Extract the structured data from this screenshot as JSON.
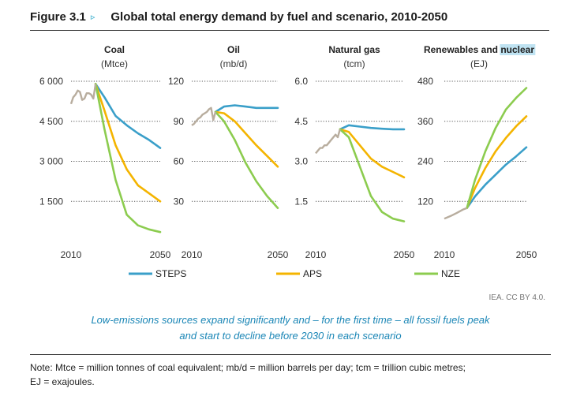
{
  "figure": {
    "number": "Figure 3.1",
    "arrow": "▹",
    "title": "Global total energy demand by fuel and scenario, 2010-2050"
  },
  "credit": "IEA. CC BY 4.0.",
  "caption": {
    "line1": "Low-emissions sources expand significantly and – for the first time – all fossil fuels peak",
    "line2": "and start to decline before 2030 in each scenario"
  },
  "note": {
    "line1": "Note: Mtce = million tonnes of coal equivalent; mb/d = million barrels per day; tcm = trillion cubic metres;",
    "line2": "EJ = exajoules."
  },
  "colors": {
    "historical": "#b8ad9e",
    "STEPS": "#3a9fc9",
    "APS": "#f4b400",
    "NZE": "#8ccc4f",
    "grid": "#555555",
    "highlight": "#bfe3f2"
  },
  "chart_data": [
    {
      "type": "line",
      "title": "Coal",
      "unit": "(Mtce)",
      "yticks": [
        "6 000",
        "4 500",
        "3 000",
        "1 500"
      ],
      "ytick_values": [
        6000,
        4500,
        3000,
        1500
      ],
      "ylim": [
        0,
        6000
      ],
      "xticks": [
        "2010",
        "2050"
      ],
      "xlim": [
        2010,
        2050
      ],
      "grid": true,
      "historical": {
        "x": [
          2010,
          2011,
          2012,
          2013,
          2014,
          2015,
          2016,
          2017,
          2018,
          2019,
          2020,
          2021
        ],
        "y": [
          5150,
          5400,
          5500,
          5650,
          5600,
          5300,
          5350,
          5550,
          5550,
          5500,
          5350,
          5900
        ]
      },
      "series": [
        {
          "name": "STEPS",
          "x": [
            2021,
            2025,
            2030,
            2035,
            2040,
            2045,
            2050
          ],
          "y": [
            5900,
            5400,
            4700,
            4350,
            4050,
            3800,
            3500
          ]
        },
        {
          "name": "APS",
          "x": [
            2021,
            2025,
            2030,
            2035,
            2040,
            2045,
            2050
          ],
          "y": [
            5900,
            4900,
            3600,
            2700,
            2100,
            1800,
            1500
          ]
        },
        {
          "name": "NZE",
          "x": [
            2021,
            2025,
            2030,
            2035,
            2040,
            2045,
            2050
          ],
          "y": [
            5900,
            4200,
            2300,
            1000,
            600,
            450,
            350
          ]
        }
      ]
    },
    {
      "type": "line",
      "title": "Oil",
      "unit": "(mb/d)",
      "yticks": [
        "120",
        "90",
        "60",
        "30"
      ],
      "ytick_values": [
        120,
        90,
        60,
        30
      ],
      "ylim": [
        0,
        120
      ],
      "xticks": [
        "2010",
        "2050"
      ],
      "xlim": [
        2010,
        2050
      ],
      "grid": true,
      "historical": {
        "x": [
          2010,
          2011,
          2012,
          2013,
          2014,
          2015,
          2016,
          2017,
          2018,
          2019,
          2020,
          2021
        ],
        "y": [
          87,
          88,
          90,
          92,
          93,
          95,
          96,
          97,
          99,
          100,
          91,
          97
        ]
      },
      "series": [
        {
          "name": "STEPS",
          "x": [
            2021,
            2025,
            2030,
            2035,
            2040,
            2045,
            2050
          ],
          "y": [
            97,
            101,
            102,
            101,
            100,
            100,
            100
          ]
        },
        {
          "name": "APS",
          "x": [
            2021,
            2025,
            2030,
            2035,
            2040,
            2045,
            2050
          ],
          "y": [
            97,
            96,
            90,
            81,
            72,
            64,
            56
          ]
        },
        {
          "name": "NZE",
          "x": [
            2021,
            2025,
            2030,
            2035,
            2040,
            2045,
            2050
          ],
          "y": [
            97,
            90,
            76,
            59,
            45,
            34,
            25
          ]
        }
      ]
    },
    {
      "type": "line",
      "title": "Natural gas",
      "unit": "(tcm)",
      "yticks": [
        "6.0",
        "4.5",
        "3.0",
        "1.5"
      ],
      "ytick_values": [
        6.0,
        4.5,
        3.0,
        1.5
      ],
      "ylim": [
        0,
        6
      ],
      "xticks": [
        "2010",
        "2050"
      ],
      "xlim": [
        2010,
        2050
      ],
      "grid": true,
      "historical": {
        "x": [
          2010,
          2011,
          2012,
          2013,
          2014,
          2015,
          2016,
          2017,
          2018,
          2019,
          2020,
          2021
        ],
        "y": [
          3.3,
          3.4,
          3.5,
          3.5,
          3.6,
          3.6,
          3.7,
          3.8,
          3.9,
          4.0,
          3.9,
          4.2
        ]
      },
      "series": [
        {
          "name": "STEPS",
          "x": [
            2021,
            2025,
            2030,
            2035,
            2040,
            2045,
            2050
          ],
          "y": [
            4.2,
            4.35,
            4.3,
            4.25,
            4.22,
            4.2,
            4.2
          ]
        },
        {
          "name": "APS",
          "x": [
            2021,
            2025,
            2030,
            2035,
            2040,
            2045,
            2050
          ],
          "y": [
            4.2,
            4.1,
            3.6,
            3.1,
            2.8,
            2.6,
            2.4
          ]
        },
        {
          "name": "NZE",
          "x": [
            2021,
            2025,
            2030,
            2035,
            2040,
            2045,
            2050
          ],
          "y": [
            4.2,
            3.9,
            2.8,
            1.7,
            1.1,
            0.85,
            0.75
          ]
        }
      ]
    },
    {
      "type": "line",
      "title": "Renewables and nuclear",
      "title_plain": "Renewables and ",
      "title_highlight": "nuclear",
      "unit": "(EJ)",
      "yticks": [
        "480",
        "360",
        "240",
        "120"
      ],
      "ytick_values": [
        480,
        360,
        240,
        120
      ],
      "ylim": [
        0,
        480
      ],
      "xticks": [
        "2010",
        "2050"
      ],
      "xlim": [
        2010,
        2050
      ],
      "grid": true,
      "historical": {
        "x": [
          2010,
          2013,
          2016,
          2019,
          2021
        ],
        "y": [
          68,
          76,
          85,
          95,
          100
        ]
      },
      "series": [
        {
          "name": "STEPS",
          "x": [
            2021,
            2025,
            2030,
            2035,
            2040,
            2045,
            2050
          ],
          "y": [
            100,
            135,
            170,
            200,
            230,
            255,
            282
          ]
        },
        {
          "name": "APS",
          "x": [
            2021,
            2025,
            2030,
            2035,
            2040,
            2045,
            2050
          ],
          "y": [
            100,
            160,
            220,
            270,
            310,
            345,
            375
          ]
        },
        {
          "name": "NZE",
          "x": [
            2021,
            2025,
            2030,
            2035,
            2040,
            2045,
            2050
          ],
          "y": [
            100,
            185,
            270,
            340,
            395,
            430,
            460
          ]
        }
      ]
    }
  ],
  "legend": [
    {
      "name": "STEPS"
    },
    {
      "name": "APS"
    },
    {
      "name": "NZE"
    }
  ]
}
